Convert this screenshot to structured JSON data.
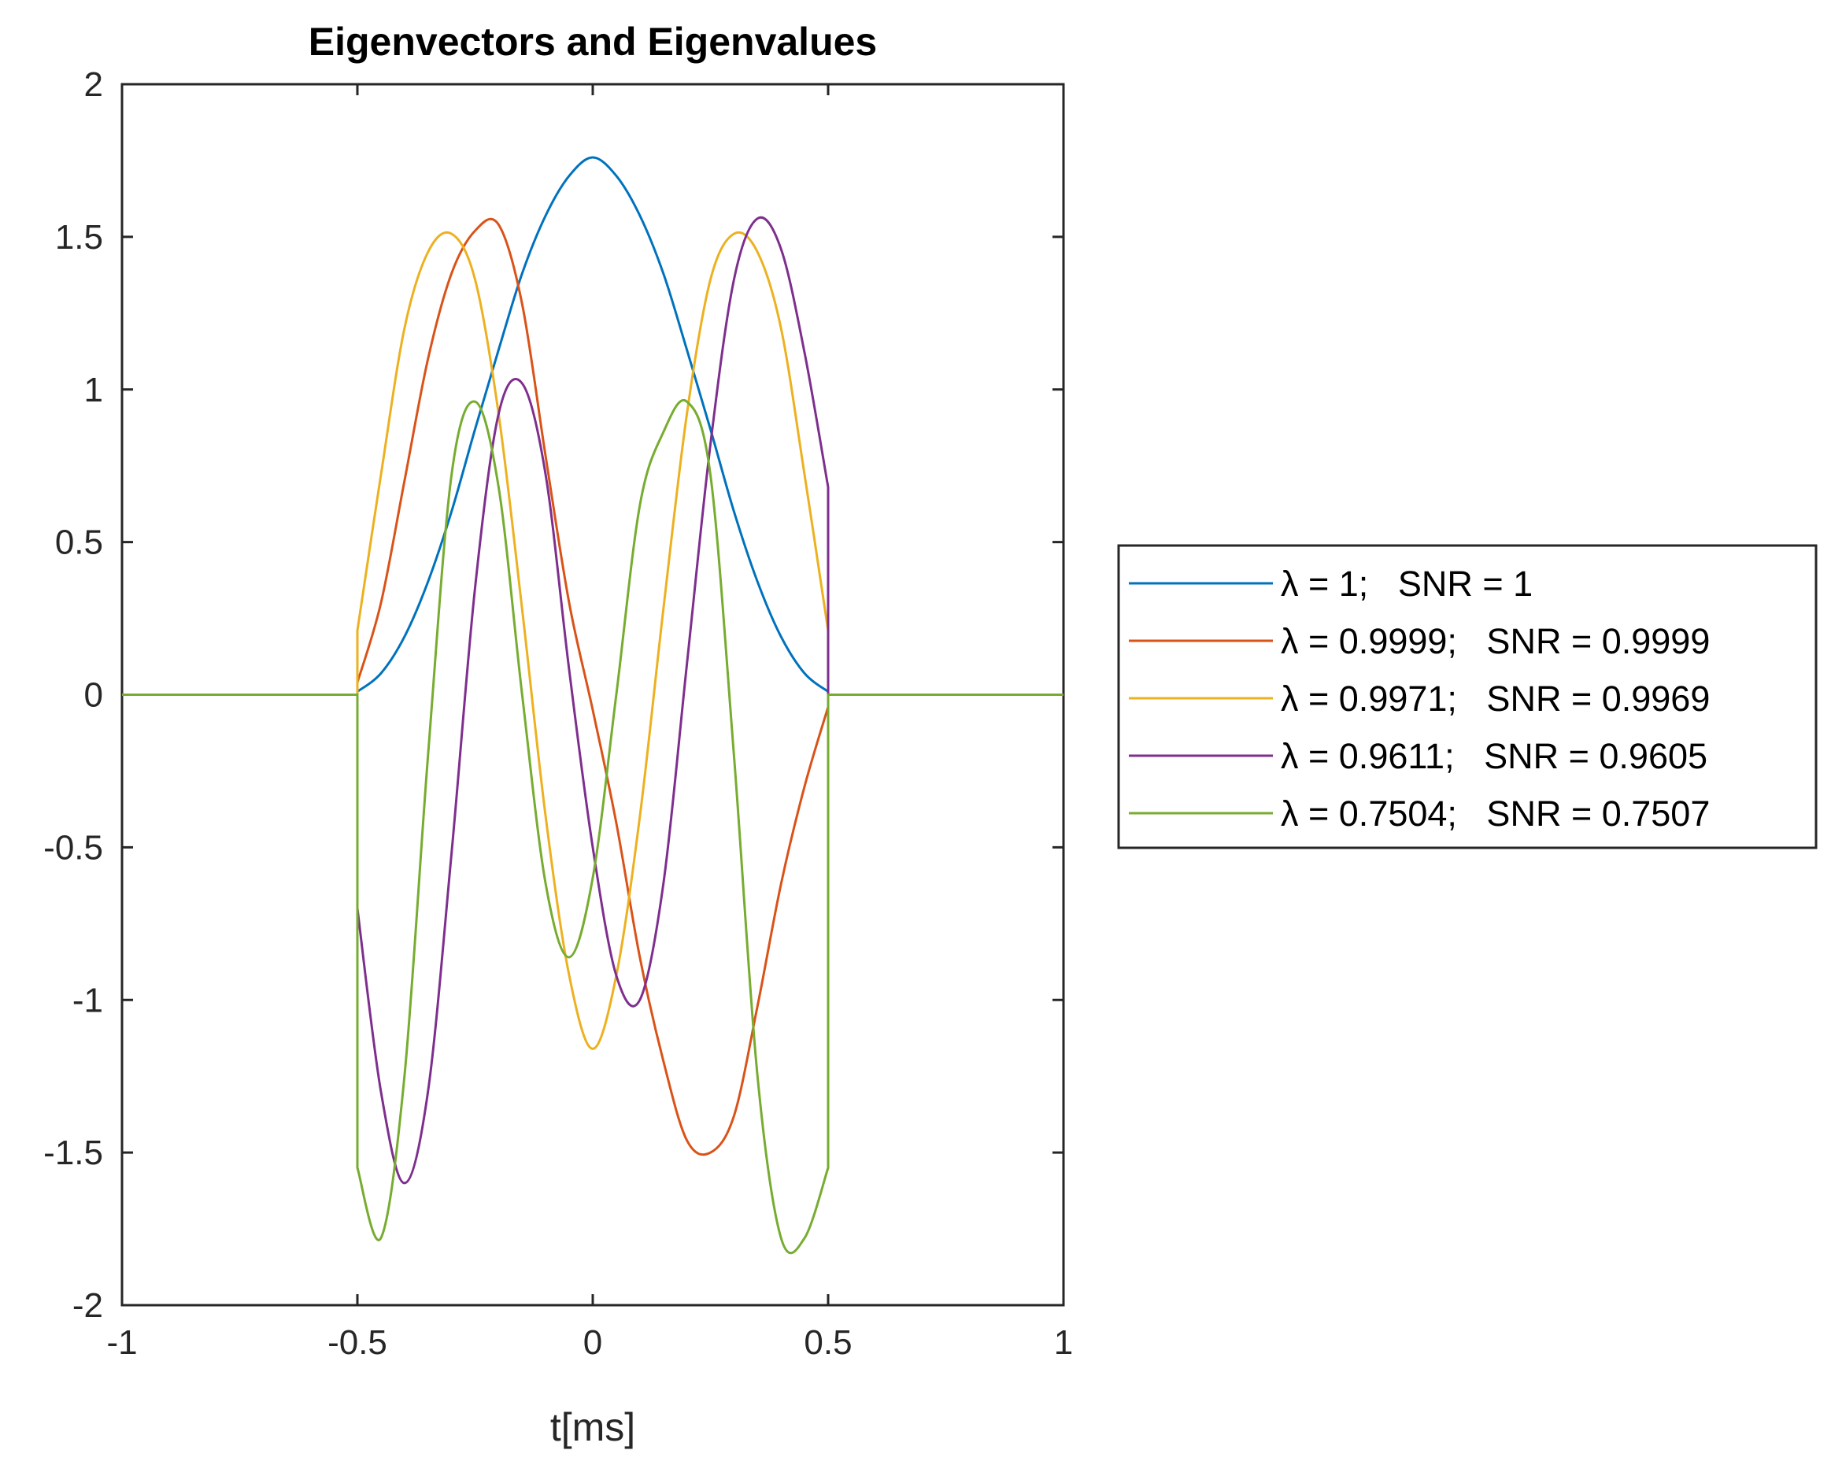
{
  "chart_data": {
    "type": "line",
    "title": "Eigenvectors and Eigenvalues",
    "xlabel": "t[ms]",
    "ylabel": "",
    "xlim": [
      -1,
      1
    ],
    "ylim": [
      -2,
      2
    ],
    "xticks": [
      -1,
      -0.5,
      0,
      0.5,
      1
    ],
    "xtick_labels": [
      "-1",
      "-0.5",
      "0",
      "0.5",
      "1"
    ],
    "yticks": [
      -2,
      -1.5,
      -1,
      -0.5,
      0,
      0.5,
      1,
      1.5,
      2
    ],
    "ytick_labels": [
      "-2",
      "-1.5",
      "-1",
      "-0.5",
      "0",
      "0.5",
      "1",
      "1.5",
      "2"
    ],
    "grid": false,
    "legend_position": "outside-right",
    "x": [
      -1,
      -0.5,
      -0.45,
      -0.4,
      -0.35,
      -0.3,
      -0.25,
      -0.2,
      -0.15,
      -0.1,
      -0.05,
      0,
      0.05,
      0.1,
      0.15,
      0.2,
      0.25,
      0.3,
      0.35,
      0.4,
      0.45,
      0.5,
      1
    ],
    "series": [
      {
        "name": "λ = 1;   SNR = 1",
        "color": "#0072BD",
        "values": [
          0,
          0.01,
          0.07,
          0.19,
          0.37,
          0.6,
          0.87,
          1.13,
          1.38,
          1.57,
          1.7,
          1.76,
          1.7,
          1.57,
          1.38,
          1.13,
          0.87,
          0.6,
          0.37,
          0.19,
          0.07,
          0.01,
          0
        ]
      },
      {
        "name": "λ = 0.9999;   SNR = 0.9999",
        "color": "#D95319",
        "values": [
          0,
          0.04,
          0.3,
          0.7,
          1.1,
          1.38,
          1.52,
          1.54,
          1.28,
          0.78,
          0.3,
          -0.05,
          -0.42,
          -0.86,
          -1.2,
          -1.46,
          -1.5,
          -1.38,
          -1.02,
          -0.62,
          -0.3,
          -0.04,
          0
        ]
      },
      {
        "name": "λ = 0.9971;   SNR = 0.9969",
        "color": "#EDB120",
        "values": [
          0,
          0.21,
          0.72,
          1.2,
          1.45,
          1.51,
          1.36,
          0.92,
          0.28,
          -0.4,
          -0.92,
          -1.16,
          -0.92,
          -0.4,
          0.28,
          0.92,
          1.36,
          1.51,
          1.45,
          1.2,
          0.72,
          0.21,
          0
        ]
      },
      {
        "name": "λ = 0.9611;   SNR = 0.9605",
        "color": "#7E2F8E",
        "values": [
          0,
          -0.7,
          -1.3,
          -1.6,
          -1.3,
          -0.52,
          0.35,
          0.92,
          1.02,
          0.72,
          0.08,
          -0.5,
          -0.92,
          -1.0,
          -0.62,
          0.1,
          0.82,
          1.36,
          1.56,
          1.46,
          1.12,
          0.68,
          0
        ]
      },
      {
        "name": "λ = 0.7504;   SNR = 0.7507",
        "color": "#77AC30",
        "values": [
          0,
          -1.55,
          -1.78,
          -1.25,
          -0.2,
          0.72,
          0.96,
          0.68,
          0.0,
          -0.62,
          -0.86,
          -0.6,
          0.0,
          0.62,
          0.86,
          0.96,
          0.72,
          -0.2,
          -1.25,
          -1.78,
          -1.78,
          -1.55,
          0
        ]
      }
    ]
  }
}
